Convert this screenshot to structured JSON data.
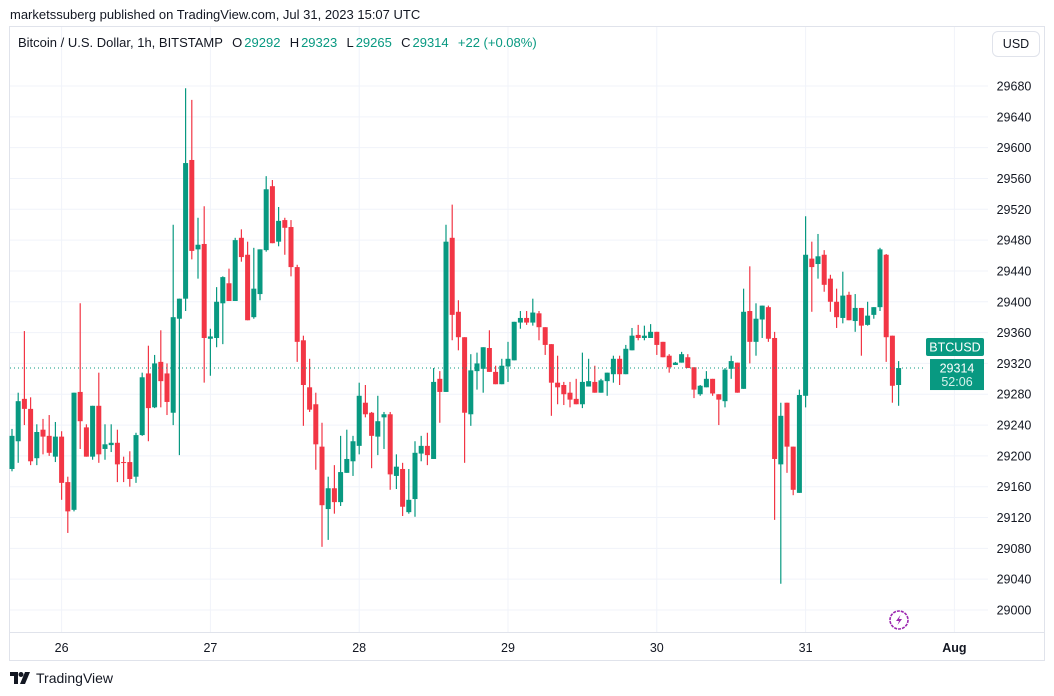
{
  "published": "marketssuberg published on TradingView.com, Jul 31, 2023 15:07 UTC",
  "legend": {
    "symbol": "Bitcoin / U.S. Dollar, 1h, BITSTAMP",
    "o_label": "O",
    "o": "29292",
    "h_label": "H",
    "h": "29323",
    "l_label": "L",
    "l": "29265",
    "c_label": "C",
    "c": "29314",
    "change": "+22 (+0.08%)"
  },
  "currency_button": "USD",
  "last_price": {
    "symbol": "BTCUSD",
    "price": "29314",
    "countdown": "52:06"
  },
  "footer_brand": "TradingView",
  "colors": {
    "up": "#089981",
    "down": "#f23645",
    "grid": "#f0f3fa",
    "border": "#e0e3eb",
    "lightning": "#9c27b0"
  },
  "icons": {
    "lightning": "lightning-icon",
    "logo": "tradingview-logo"
  },
  "chart_data": {
    "type": "candlestick",
    "interval": "1h",
    "ylim": [
      28980,
      29700
    ],
    "yticks": [
      29000,
      29040,
      29080,
      29120,
      29160,
      29200,
      29240,
      29280,
      29320,
      29360,
      29400,
      29440,
      29480,
      29520,
      29560,
      29600,
      29640,
      29680
    ],
    "xticks": [
      {
        "label": "26",
        "time": "07-26 00:00"
      },
      {
        "label": "27",
        "time": "07-27 00:00"
      },
      {
        "label": "28",
        "time": "07-28 00:00"
      },
      {
        "label": "29",
        "time": "07-29 00:00"
      },
      {
        "label": "30",
        "time": "07-30 00:00"
      },
      {
        "label": "31",
        "time": "07-31 00:00"
      },
      {
        "label": "Aug",
        "time": "08-01 00:00"
      }
    ],
    "grid": true,
    "columns": [
      "time",
      "open",
      "high",
      "low",
      "close"
    ],
    "candles": [
      [
        "07-25 16:00",
        29183,
        29235,
        29180,
        29226
      ],
      [
        "07-25 17:00",
        29219,
        29282,
        29191,
        29271
      ],
      [
        "07-25 18:00",
        29274,
        29362,
        29240,
        29261
      ],
      [
        "07-25 19:00",
        29261,
        29276,
        29188,
        29193
      ],
      [
        "07-25 20:00",
        29197,
        29241,
        29188,
        29231
      ],
      [
        "07-25 21:00",
        29234,
        29248,
        29202,
        29225
      ],
      [
        "07-25 22:00",
        29226,
        29253,
        29200,
        29204
      ],
      [
        "07-25 23:00",
        29199,
        29244,
        29192,
        29225
      ],
      [
        "07-26 00:00",
        29225,
        29232,
        29143,
        29165
      ],
      [
        "07-26 01:00",
        29166,
        29173,
        29100,
        29128
      ],
      [
        "07-26 02:00",
        29130,
        29282,
        29128,
        29282
      ],
      [
        "07-26 03:00",
        29283,
        29398,
        29209,
        29245
      ],
      [
        "07-26 04:00",
        29237,
        29241,
        29199,
        29199
      ],
      [
        "07-26 05:00",
        29199,
        29265,
        29195,
        29265
      ],
      [
        "07-26 06:00",
        29265,
        29308,
        29191,
        29202
      ],
      [
        "07-26 07:00",
        29209,
        29241,
        29195,
        29215
      ],
      [
        "07-26 08:00",
        29214,
        29241,
        29205,
        29217
      ],
      [
        "07-26 09:00",
        29217,
        29234,
        29166,
        29189
      ],
      [
        "07-26 10:00",
        29192,
        29199,
        29166,
        29191
      ],
      [
        "07-26 11:00",
        29192,
        29206,
        29160,
        29170
      ],
      [
        "07-26 12:00",
        29173,
        29230,
        29165,
        29227
      ],
      [
        "07-26 13:00",
        29227,
        29308,
        29226,
        29302
      ],
      [
        "07-26 14:00",
        29307,
        29343,
        29219,
        29262
      ],
      [
        "07-26 15:00",
        29263,
        29331,
        29262,
        29320
      ],
      [
        "07-26 16:00",
        29322,
        29363,
        29263,
        29297
      ],
      [
        "07-26 17:00",
        29307,
        29320,
        29253,
        29270
      ],
      [
        "07-26 18:00",
        29256,
        29500,
        29240,
        29380
      ],
      [
        "07-26 19:00",
        29378,
        29404,
        29201,
        29404
      ],
      [
        "07-26 20:00",
        29404,
        29677,
        29388,
        29580
      ],
      [
        "07-26 21:00",
        29584,
        29662,
        29455,
        29466
      ],
      [
        "07-26 22:00",
        29468,
        29509,
        29430,
        29474
      ],
      [
        "07-26 23:00",
        29475,
        29524,
        29295,
        29353
      ],
      [
        "07-27 00:00",
        29352,
        29365,
        29304,
        29355
      ],
      [
        "07-27 01:00",
        29353,
        29419,
        29341,
        29400
      ],
      [
        "07-27 02:00",
        29398,
        29433,
        29345,
        29432
      ],
      [
        "07-27 03:00",
        29424,
        29443,
        29401,
        29401
      ],
      [
        "07-27 04:00",
        29401,
        29483,
        29401,
        29480
      ],
      [
        "07-27 05:00",
        29483,
        29494,
        29452,
        29458
      ],
      [
        "07-27 06:00",
        29461,
        29478,
        29376,
        29376
      ],
      [
        "07-27 07:00",
        29380,
        29470,
        29378,
        29417
      ],
      [
        "07-27 08:00",
        29410,
        29468,
        29402,
        29468
      ],
      [
        "07-27 09:00",
        29467,
        29563,
        29465,
        29546
      ],
      [
        "07-27 10:00",
        29550,
        29558,
        29476,
        29476
      ],
      [
        "07-27 11:00",
        29478,
        29523,
        29472,
        29505
      ],
      [
        "07-27 12:00",
        29506,
        29509,
        29461,
        29496
      ],
      [
        "07-27 13:00",
        29497,
        29506,
        29433,
        29445
      ],
      [
        "07-27 14:00",
        29445,
        29448,
        29322,
        29348
      ],
      [
        "07-27 15:00",
        29350,
        29356,
        29239,
        29292
      ],
      [
        "07-27 16:00",
        29289,
        29326,
        29257,
        29260
      ],
      [
        "07-27 17:00",
        29267,
        29282,
        29182,
        29215
      ],
      [
        "07-27 18:00",
        29212,
        29243,
        29082,
        29136
      ],
      [
        "07-27 19:00",
        29131,
        29173,
        29091,
        29158
      ],
      [
        "07-27 20:00",
        29158,
        29188,
        29125,
        29140
      ],
      [
        "07-27 21:00",
        29140,
        29226,
        29135,
        29179
      ],
      [
        "07-27 22:00",
        29178,
        29234,
        29178,
        29196
      ],
      [
        "07-27 23:00",
        29193,
        29226,
        29174,
        29219
      ],
      [
        "07-28 00:00",
        29213,
        29295,
        29202,
        29278
      ],
      [
        "07-28 01:00",
        29269,
        29292,
        29250,
        29254
      ],
      [
        "07-28 02:00",
        29256,
        29257,
        29184,
        29226
      ],
      [
        "07-28 03:00",
        29225,
        29278,
        29201,
        29245
      ],
      [
        "07-28 04:00",
        29250,
        29257,
        29209,
        29254
      ],
      [
        "07-28 05:00",
        29254,
        29257,
        29156,
        29176
      ],
      [
        "07-28 06:00",
        29174,
        29202,
        29157,
        29186
      ],
      [
        "07-28 07:00",
        29183,
        29191,
        29122,
        29134
      ],
      [
        "07-28 08:00",
        29127,
        29183,
        29125,
        29143
      ],
      [
        "07-28 09:00",
        29144,
        29219,
        29121,
        29204
      ],
      [
        "07-28 10:00",
        29203,
        29226,
        29193,
        29213
      ],
      [
        "07-28 11:00",
        29213,
        29230,
        29188,
        29201
      ],
      [
        "07-28 12:00",
        29196,
        29314,
        29196,
        29296
      ],
      [
        "07-28 13:00",
        29300,
        29310,
        29243,
        29283
      ],
      [
        "07-28 14:00",
        29283,
        29500,
        29283,
        29478
      ],
      [
        "07-28 15:00",
        29483,
        29526,
        29350,
        29383
      ],
      [
        "07-28 16:00",
        29387,
        29402,
        29337,
        29354
      ],
      [
        "07-28 17:00",
        29354,
        29354,
        29191,
        29256
      ],
      [
        "07-28 18:00",
        29254,
        29332,
        29239,
        29311
      ],
      [
        "07-28 19:00",
        29310,
        29334,
        29286,
        29320
      ],
      [
        "07-28 20:00",
        29313,
        29341,
        29282,
        29341
      ],
      [
        "07-28 21:00",
        29340,
        29363,
        29309,
        29309
      ],
      [
        "07-28 22:00",
        29309,
        29317,
        29293,
        29293
      ],
      [
        "07-28 23:00",
        29293,
        29326,
        29293,
        29317
      ],
      [
        "07-29 00:00",
        29316,
        29348,
        29296,
        29326
      ],
      [
        "07-29 01:00",
        29324,
        29374,
        29324,
        29374
      ],
      [
        "07-29 02:00",
        29373,
        29388,
        29365,
        29379
      ],
      [
        "07-29 03:00",
        29379,
        29388,
        29370,
        29373
      ],
      [
        "07-29 04:00",
        29373,
        29404,
        29369,
        29386
      ],
      [
        "07-29 05:00",
        29385,
        29388,
        29350,
        29367
      ],
      [
        "07-29 06:00",
        29367,
        29367,
        29331,
        29344
      ],
      [
        "07-29 07:00",
        29345,
        29345,
        29252,
        29295
      ],
      [
        "07-29 08:00",
        29295,
        29330,
        29267,
        29289
      ],
      [
        "07-29 09:00",
        29292,
        29296,
        29266,
        29280
      ],
      [
        "07-29 10:00",
        29282,
        29296,
        29263,
        29273
      ],
      [
        "07-29 11:00",
        29274,
        29300,
        29267,
        29267
      ],
      [
        "07-29 12:00",
        29267,
        29334,
        29262,
        29296
      ],
      [
        "07-29 13:00",
        29290,
        29326,
        29290,
        29297
      ],
      [
        "07-29 14:00",
        29296,
        29317,
        29282,
        29282
      ],
      [
        "07-29 15:00",
        29282,
        29300,
        29282,
        29298
      ],
      [
        "07-29 16:00",
        29297,
        29308,
        29278,
        29308
      ],
      [
        "07-29 17:00",
        29306,
        29330,
        29295,
        29326
      ],
      [
        "07-29 18:00",
        29326,
        29330,
        29292,
        29306
      ],
      [
        "07-29 19:00",
        29306,
        29344,
        29306,
        29339
      ],
      [
        "07-29 20:00",
        29337,
        29366,
        29337,
        29356
      ],
      [
        "07-29 21:00",
        29357,
        29370,
        29350,
        29353
      ],
      [
        "07-29 22:00",
        29353,
        29369,
        29350,
        29356
      ],
      [
        "07-29 23:00",
        29353,
        29371,
        29353,
        29361
      ],
      [
        "07-30 00:00",
        29361,
        29361,
        29331,
        29344
      ],
      [
        "07-30 01:00",
        29348,
        29348,
        29328,
        29328
      ],
      [
        "07-30 02:00",
        29330,
        29332,
        29308,
        29315
      ],
      [
        "07-30 03:00",
        29318,
        29322,
        29318,
        29321
      ],
      [
        "07-30 04:00",
        29321,
        29335,
        29321,
        29332
      ],
      [
        "07-30 05:00",
        29328,
        29332,
        29314,
        29314
      ],
      [
        "07-30 06:00",
        29315,
        29315,
        29275,
        29286
      ],
      [
        "07-30 07:00",
        29280,
        29292,
        29278,
        29291
      ],
      [
        "07-30 08:00",
        29289,
        29310,
        29289,
        29300
      ],
      [
        "07-30 09:00",
        29300,
        29300,
        29278,
        29281
      ],
      [
        "07-30 10:00",
        29280,
        29280,
        29240,
        29273
      ],
      [
        "07-30 11:00",
        29271,
        29314,
        29263,
        29312
      ],
      [
        "07-30 12:00",
        29313,
        29330,
        29300,
        29323
      ],
      [
        "07-30 13:00",
        29321,
        29321,
        29282,
        29282
      ],
      [
        "07-30 14:00",
        29287,
        29417,
        29287,
        29387
      ],
      [
        "07-30 15:00",
        29388,
        29446,
        29320,
        29348
      ],
      [
        "07-30 16:00",
        29348,
        29398,
        29330,
        29378
      ],
      [
        "07-30 17:00",
        29377,
        29395,
        29353,
        29395
      ],
      [
        "07-30 18:00",
        29393,
        29395,
        29348,
        29352
      ],
      [
        "07-30 19:00",
        29353,
        29361,
        29117,
        29196
      ],
      [
        "07-30 20:00",
        29189,
        29269,
        29034,
        29252
      ],
      [
        "07-30 21:00",
        29269,
        29269,
        29178,
        29212
      ],
      [
        "07-30 22:00",
        29212,
        29212,
        29149,
        29156
      ],
      [
        "07-30 23:00",
        29152,
        29286,
        29152,
        29279
      ],
      [
        "07-31 00:00",
        29278,
        29511,
        29263,
        29461
      ],
      [
        "07-31 01:00",
        29456,
        29478,
        29387,
        29445
      ],
      [
        "07-31 02:00",
        29449,
        29488,
        29430,
        29459
      ],
      [
        "07-31 03:00",
        29461,
        29467,
        29413,
        29422
      ],
      [
        "07-31 04:00",
        29430,
        29435,
        29387,
        29400
      ],
      [
        "07-31 05:00",
        29400,
        29417,
        29366,
        29380
      ],
      [
        "07-31 06:00",
        29379,
        29439,
        29372,
        29408
      ],
      [
        "07-31 07:00",
        29409,
        29413,
        29376,
        29376
      ],
      [
        "07-31 08:00",
        29375,
        29410,
        29361,
        29392
      ],
      [
        "07-31 09:00",
        29392,
        29392,
        29330,
        29369
      ],
      [
        "07-31 10:00",
        29370,
        29400,
        29369,
        29382
      ],
      [
        "07-31 11:00",
        29383,
        29393,
        29378,
        29393
      ],
      [
        "07-31 12:00",
        29393,
        29470,
        29388,
        29468
      ],
      [
        "07-31 13:00",
        29461,
        29462,
        29322,
        29354
      ],
      [
        "07-31 14:00",
        29356,
        29356,
        29269,
        29291
      ],
      [
        "07-31 15:00",
        29292,
        29323,
        29265,
        29314
      ]
    ]
  }
}
